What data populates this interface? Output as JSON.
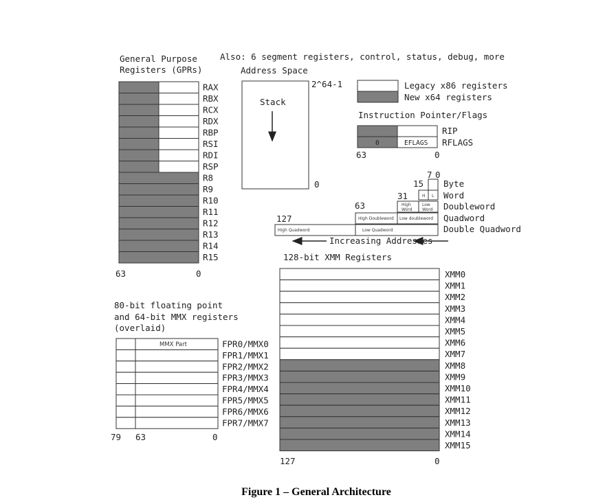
{
  "colors": {
    "legacy": "#ffffff",
    "new_x64": "#7f7f7f",
    "stroke": "#333333"
  },
  "header": {
    "gpr_title_1": "General Purpose",
    "gpr_title_2": "Registers (GPRs)",
    "also": "Also: 6 segment registers, control, status, debug, more"
  },
  "gpr": {
    "names": [
      "RAX",
      "RBX",
      "RCX",
      "RDX",
      "RBP",
      "RSI",
      "RDI",
      "RSP",
      "R8",
      "R9",
      "R10",
      "R11",
      "R12",
      "R13",
      "R14",
      "R15"
    ],
    "legacy_count": 8,
    "bit_high": "63",
    "bit_low": "0"
  },
  "address_space": {
    "title": "Address Space",
    "top_label": "2^64-1",
    "bottom_label": "0",
    "stack_label": "Stack"
  },
  "legend": {
    "legacy": "Legacy x86 registers",
    "new": "New x64 registers"
  },
  "ip_flags": {
    "title": "Instruction Pointer/Flags",
    "rip": "RIP",
    "rflags": "RFLAGS",
    "zero_box": "0",
    "eflags_box": "EFLAGS",
    "bit_high": "63",
    "bit_low": "0"
  },
  "data_types": {
    "bit_7": "7",
    "bit_0": "0",
    "bit_15": "15",
    "bit_31": "31",
    "bit_63": "63",
    "bit_127": "127",
    "h_label": "H",
    "l_label": "L",
    "high_word_1": "High",
    "high_word_2": "Word",
    "low_word_1": "Low",
    "low_word_2": "Word",
    "high_dword": "High Doubleword",
    "low_dword": "Low doubleword",
    "high_qword": "High Quadword",
    "low_qword": "Low Quadword",
    "names": [
      "Byte",
      "Word",
      "Doubleword",
      "Quadword",
      "Double Quadword"
    ],
    "increasing": "Increasing Addresses"
  },
  "fpu": {
    "title_1": "80-bit floating point",
    "title_2": "and 64-bit MMX registers",
    "title_3": "(overlaid)",
    "mmx_part": "MMX Part",
    "names": [
      "FPR0/MMX0",
      "FPR1/MMX1",
      "FPR2/MMX2",
      "FPR3/MMX3",
      "FPR4/MMX4",
      "FPR5/MMX5",
      "FPR6/MMX6",
      "FPR7/MMX7"
    ],
    "bit_79": "79",
    "bit_63": "63",
    "bit_0": "0"
  },
  "xmm": {
    "title": "128-bit XMM Registers",
    "names": [
      "XMM0",
      "XMM1",
      "XMM2",
      "XMM3",
      "XMM4",
      "XMM5",
      "XMM6",
      "XMM7",
      "XMM8",
      "XMM9",
      "XMM10",
      "XMM11",
      "XMM12",
      "XMM13",
      "XMM14",
      "XMM15"
    ],
    "legacy_count": 8,
    "bit_high": "127",
    "bit_low": "0"
  },
  "caption": "Figure 1 – General Architecture"
}
